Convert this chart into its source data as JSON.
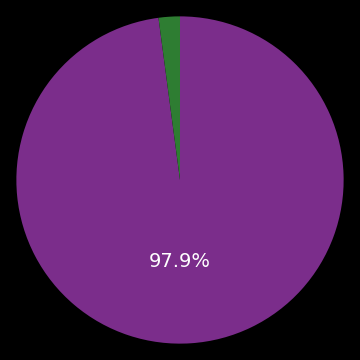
{
  "values": [
    97.9,
    2.1
  ],
  "colors": [
    "#7B2D8B",
    "#2E7D32"
  ],
  "label": "97.9%",
  "label_color": "#ffffff",
  "label_fontsize": 14,
  "background_color": "#000000",
  "startangle": 90,
  "figsize": [
    3.6,
    3.6
  ],
  "dpi": 100
}
